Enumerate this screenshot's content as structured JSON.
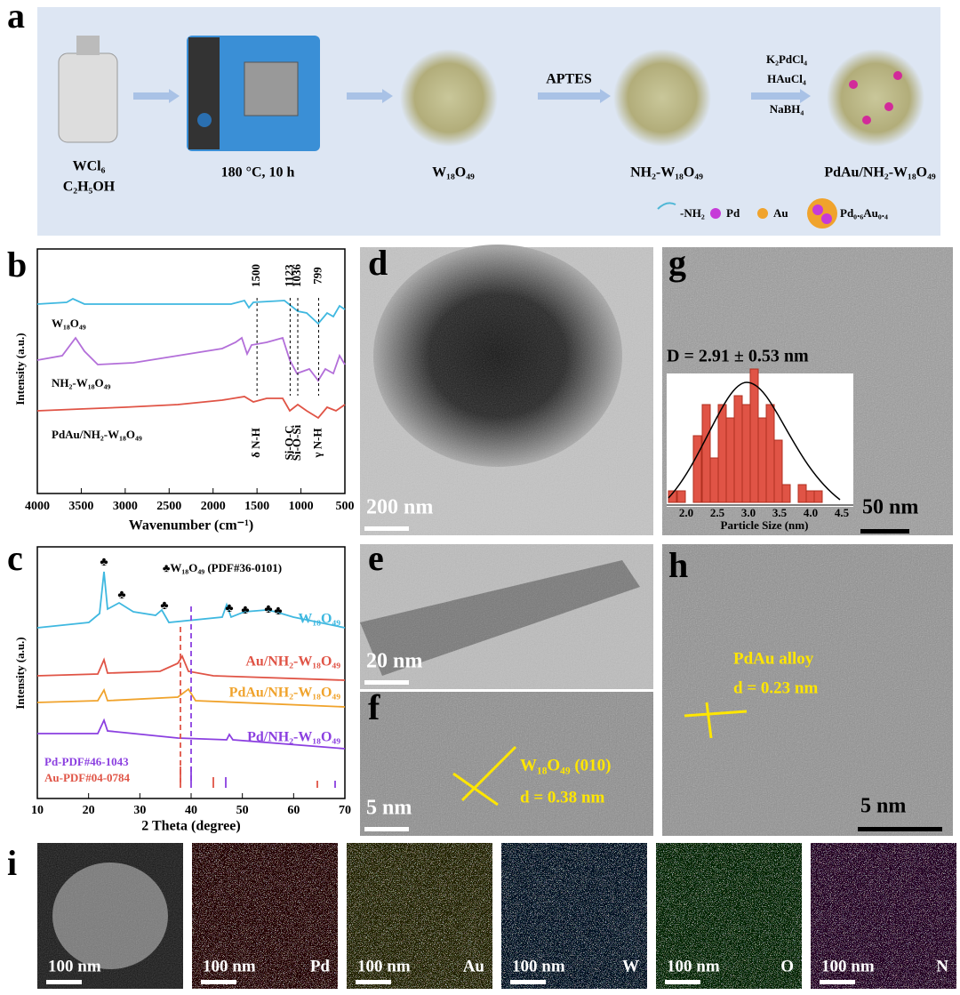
{
  "panel_labels": [
    "a",
    "b",
    "c",
    "d",
    "e",
    "f",
    "g",
    "h",
    "i"
  ],
  "a": {
    "precursor": [
      "WCl₆",
      "C₂H₅OH"
    ],
    "condition": "180 °C, 10 h",
    "product1": "W₁₈O₄₉",
    "step2": "APTES",
    "product2": "NH₂-W₁₈O₄₉",
    "step3": [
      "K₂PdCl₄",
      "HAuCl₄",
      "NaBH₄"
    ],
    "product3": "PdAu/NH₂-W₁₈O₄₉",
    "legend": [
      "-NH₂",
      "Pd",
      "Au",
      "Pd₀.₆Au₀.₄"
    ]
  },
  "b": {
    "xlabel": "Wavenumber (cm⁻¹)",
    "ylabel": "Intensity (a.u.)",
    "xticks": [
      4000,
      3500,
      3000,
      2500,
      2000,
      1500,
      1000,
      500
    ],
    "series": [
      "W₁₈O₄₉",
      "NH₂-W₁₈O₄₉",
      "PdAu/NH₂-W₁₈O₄₉"
    ],
    "peaks": [
      {
        "value": 1500,
        "assign": "δ N-H"
      },
      {
        "value": 1123,
        "assign": "Si-O-C"
      },
      {
        "value": 1036,
        "assign": "Si-O-Si"
      },
      {
        "value": 799,
        "assign": "γ N-H"
      }
    ]
  },
  "c": {
    "legend": "♣W₁₈O₄₉ (PDF#36-0101)",
    "series": [
      "W₁₈O₄₉",
      "Au/NH₂-W₁₈O₄₉",
      "PdAu/NH₂-W₁₈O₄₉",
      "Pd/NH₂-W₁₈O₄₉"
    ],
    "refs": [
      "Pd-PDF#46-1043",
      "Au-PDF#04-0784"
    ],
    "xlabel": "2 Theta (degree)",
    "ylabel": "Intensity (a.u.)",
    "xticks": [
      10,
      20,
      30,
      40,
      50,
      60,
      70
    ]
  },
  "d": {
    "scale": "200 nm"
  },
  "e": {
    "scale": "20 nm"
  },
  "f": {
    "scale": "5 nm",
    "plane": "W₁₈O₄₉ (010)",
    "spacing": "d = 0.38 nm"
  },
  "g": {
    "scale": "50 nm",
    "mean": "D = 2.91 ± 0.53 nm",
    "xlabel": "Particle Size (nm)",
    "xticks": [
      "2.0",
      "2.5",
      "3.0",
      "3.5",
      "4.0",
      "4.5"
    ]
  },
  "h": {
    "phase": "PdAu alloy",
    "spacing": "d = 0.23 nm",
    "scale": "5 nm"
  },
  "i": {
    "scale": "100 nm",
    "elements": [
      "Pd",
      "Au",
      "W",
      "O",
      "N"
    ]
  }
}
